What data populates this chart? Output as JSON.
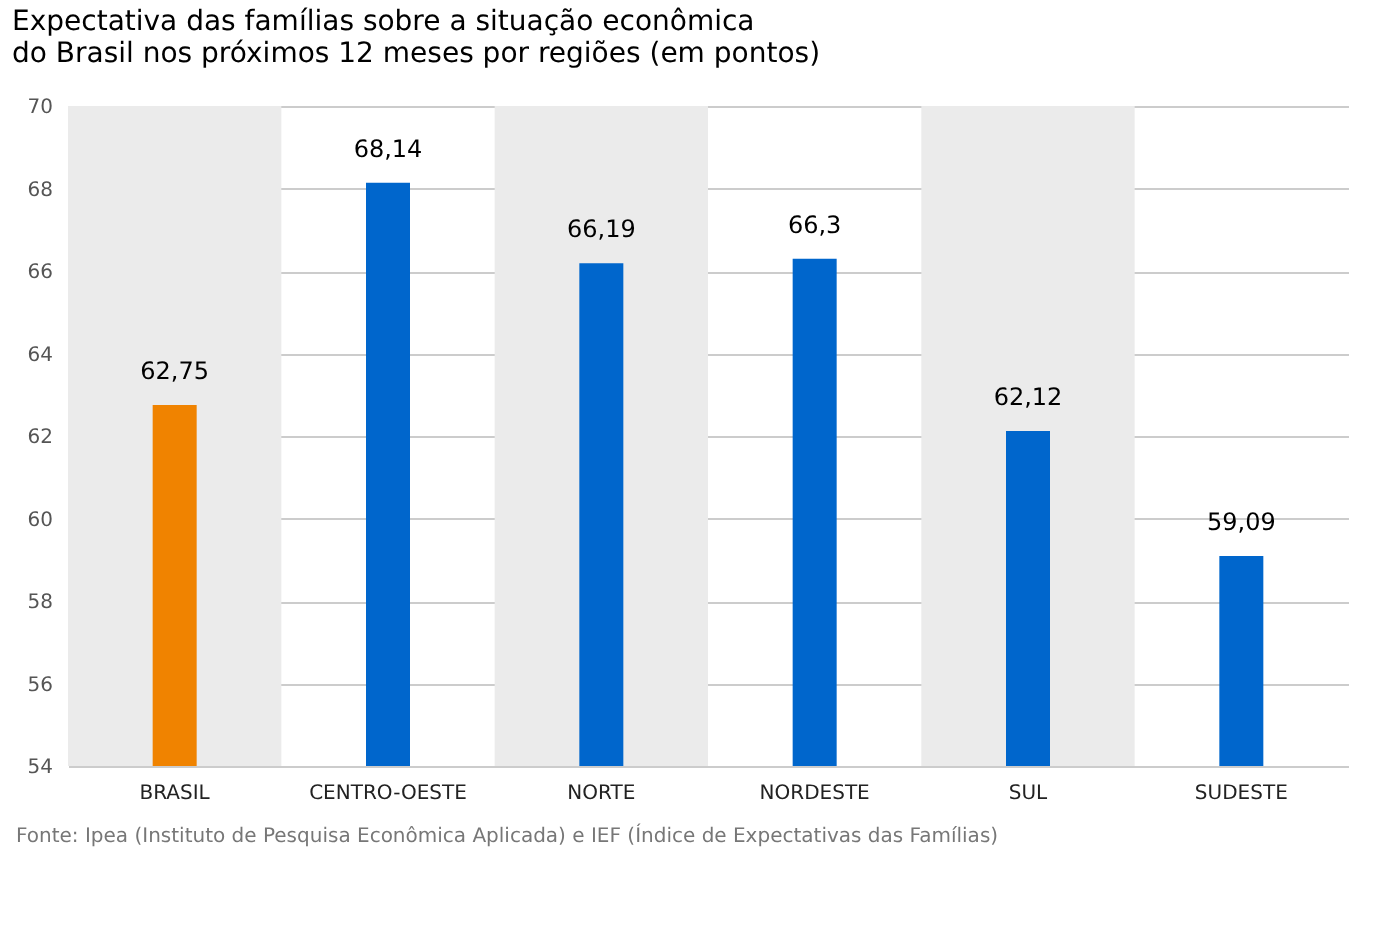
{
  "chart_data": {
    "type": "bar",
    "title": [
      "Expectativa das famílias sobre a situação econômica",
      "do Brasil nos próximos 12 meses por regiões (em pontos)"
    ],
    "categories": [
      "BRASIL",
      "CENTRO-OESTE",
      "NORTE",
      "NORDESTE",
      "SUL",
      "SUDESTE"
    ],
    "values": [
      62.75,
      68.14,
      66.19,
      66.3,
      62.12,
      59.09
    ],
    "colors": [
      "#f08300",
      "#0066cc",
      "#0066cc",
      "#0066cc",
      "#0066cc",
      "#0066cc"
    ],
    "value_labels": [
      "62,75",
      "68,14",
      "66,19",
      "66,3",
      "62,12",
      "59,09"
    ],
    "ylim": [
      54,
      70
    ],
    "yticks": [
      54,
      56,
      58,
      60,
      62,
      64,
      66,
      68,
      70
    ],
    "grid": "y",
    "bands": [
      {
        "axis": "x",
        "from": "BRASIL",
        "to": "BRASIL",
        "color": "#ebebeb"
      },
      {
        "axis": "x",
        "from": "NORTE",
        "to": "NORTE",
        "color": "#ebebeb"
      },
      {
        "axis": "x",
        "from": "SUL",
        "to": "SUL",
        "color": "#ebebeb"
      }
    ],
    "annotations": [
      "Fonte: Ipea (Instituto de Pesquisa Econômica Aplicada) e IEF (Índice de Expectativas das Famílias)"
    ]
  }
}
